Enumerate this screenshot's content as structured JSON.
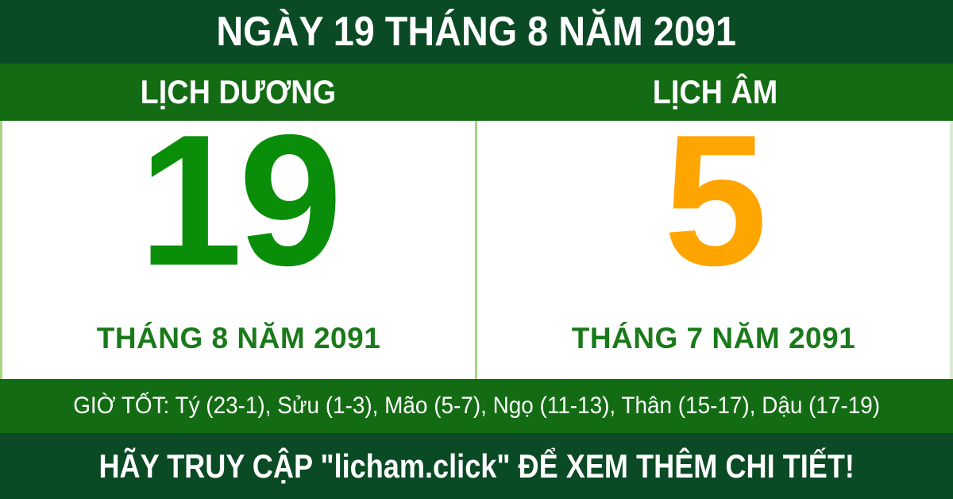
{
  "header": {
    "title": "NGÀY 19 THÁNG 8 NĂM 2091"
  },
  "calendars": {
    "solar": {
      "label": "LỊCH DƯƠNG",
      "day": "19",
      "month_year": "THÁNG 8 NĂM 2091"
    },
    "lunar": {
      "label": "LỊCH ÂM",
      "day": "5",
      "month_year": "THÁNG 7 NĂM 2091"
    }
  },
  "good_hours": {
    "text": "GIỜ TỐT: Tý (23-1), Sửu (1-3), Mão (5-7), Ngọ (11-13), Thân (15-17), Dậu (17-19)"
  },
  "footer": {
    "text": "HÃY TRUY CẬP \"licham.click\" ĐỂ XEM THÊM CHI TIẾT!"
  },
  "colors": {
    "dark_green": "#0a4a24",
    "medium_green": "#136c13",
    "solar_day": "#0a8e0a",
    "lunar_day": "#ffa502",
    "month_text": "#1a7a1a",
    "divider": "#a8d780",
    "text_on_green": "#ffffff"
  }
}
